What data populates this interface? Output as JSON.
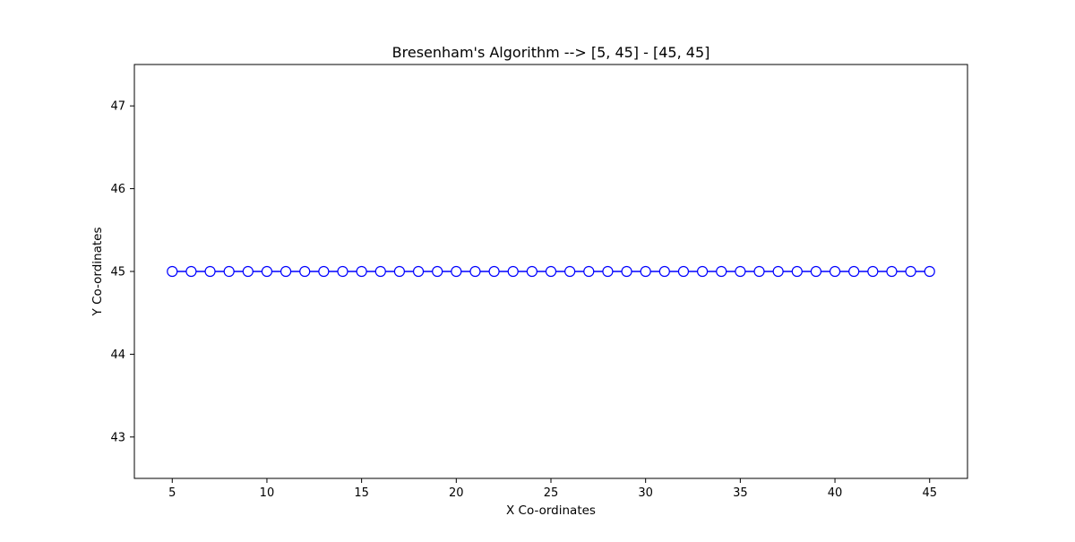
{
  "chart_data": {
    "type": "line",
    "title": "Bresenham's Algorithm --> [5, 45] - [45, 45]",
    "xlabel": "X Co-ordinates",
    "ylabel": "Y Co-ordinates",
    "xlim": [
      3.0,
      47.0
    ],
    "ylim": [
      42.5,
      47.5
    ],
    "xticks": [
      "5",
      "10",
      "15",
      "20",
      "25",
      "30",
      "35",
      "40",
      "45"
    ],
    "yticks": [
      "43",
      "44",
      "45",
      "46",
      "47"
    ],
    "grid": false,
    "series": [
      {
        "color": "#0000ff",
        "marker": "circle",
        "marker_fill": "#ffffff",
        "x": [
          5,
          6,
          7,
          8,
          9,
          10,
          11,
          12,
          13,
          14,
          15,
          16,
          17,
          18,
          19,
          20,
          21,
          22,
          23,
          24,
          25,
          26,
          27,
          28,
          29,
          30,
          31,
          32,
          33,
          34,
          35,
          36,
          37,
          38,
          39,
          40,
          41,
          42,
          43,
          44,
          45
        ],
        "y": [
          45,
          45,
          45,
          45,
          45,
          45,
          45,
          45,
          45,
          45,
          45,
          45,
          45,
          45,
          45,
          45,
          45,
          45,
          45,
          45,
          45,
          45,
          45,
          45,
          45,
          45,
          45,
          45,
          45,
          45,
          45,
          45,
          45,
          45,
          45,
          45,
          45,
          45,
          45,
          45,
          45
        ]
      }
    ]
  }
}
